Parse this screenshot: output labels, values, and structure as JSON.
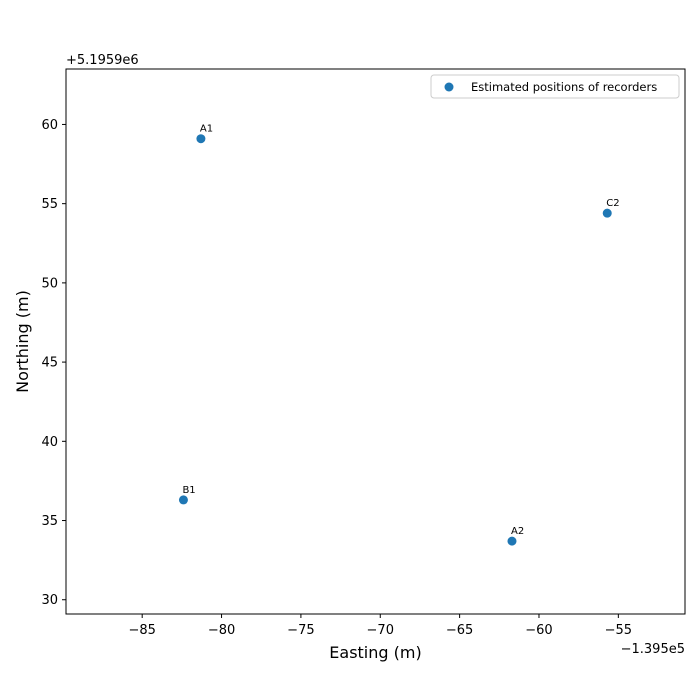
{
  "chart_data": {
    "type": "scatter",
    "title": "",
    "xlabel": "Easting (m)",
    "ylabel": "Northing (m)",
    "x_offset_label": "−1.395e5",
    "y_offset_label": "+5.1959e6",
    "xlim": [
      -89.8,
      -50.8
    ],
    "ylim": [
      29.1,
      63.5
    ],
    "x_ticks": [
      -85,
      -80,
      -75,
      -70,
      -65,
      -60,
      -55
    ],
    "x_tick_labels": [
      "−85",
      "−80",
      "−75",
      "−70",
      "−65",
      "−60",
      "−55"
    ],
    "y_ticks": [
      30,
      35,
      40,
      45,
      50,
      55,
      60
    ],
    "y_tick_labels": [
      "30",
      "35",
      "40",
      "45",
      "50",
      "55",
      "60"
    ],
    "grid": false,
    "legend_position": "top-right",
    "series": [
      {
        "name": "Estimated positions of recorders",
        "color": "#1f77b4",
        "points": [
          {
            "label": "A1",
            "x": -81.3,
            "y": 59.1
          },
          {
            "label": "C2",
            "x": -55.7,
            "y": 54.4
          },
          {
            "label": "B1",
            "x": -82.4,
            "y": 36.3
          },
          {
            "label": "A2",
            "x": -61.7,
            "y": 33.7
          }
        ]
      }
    ]
  }
}
